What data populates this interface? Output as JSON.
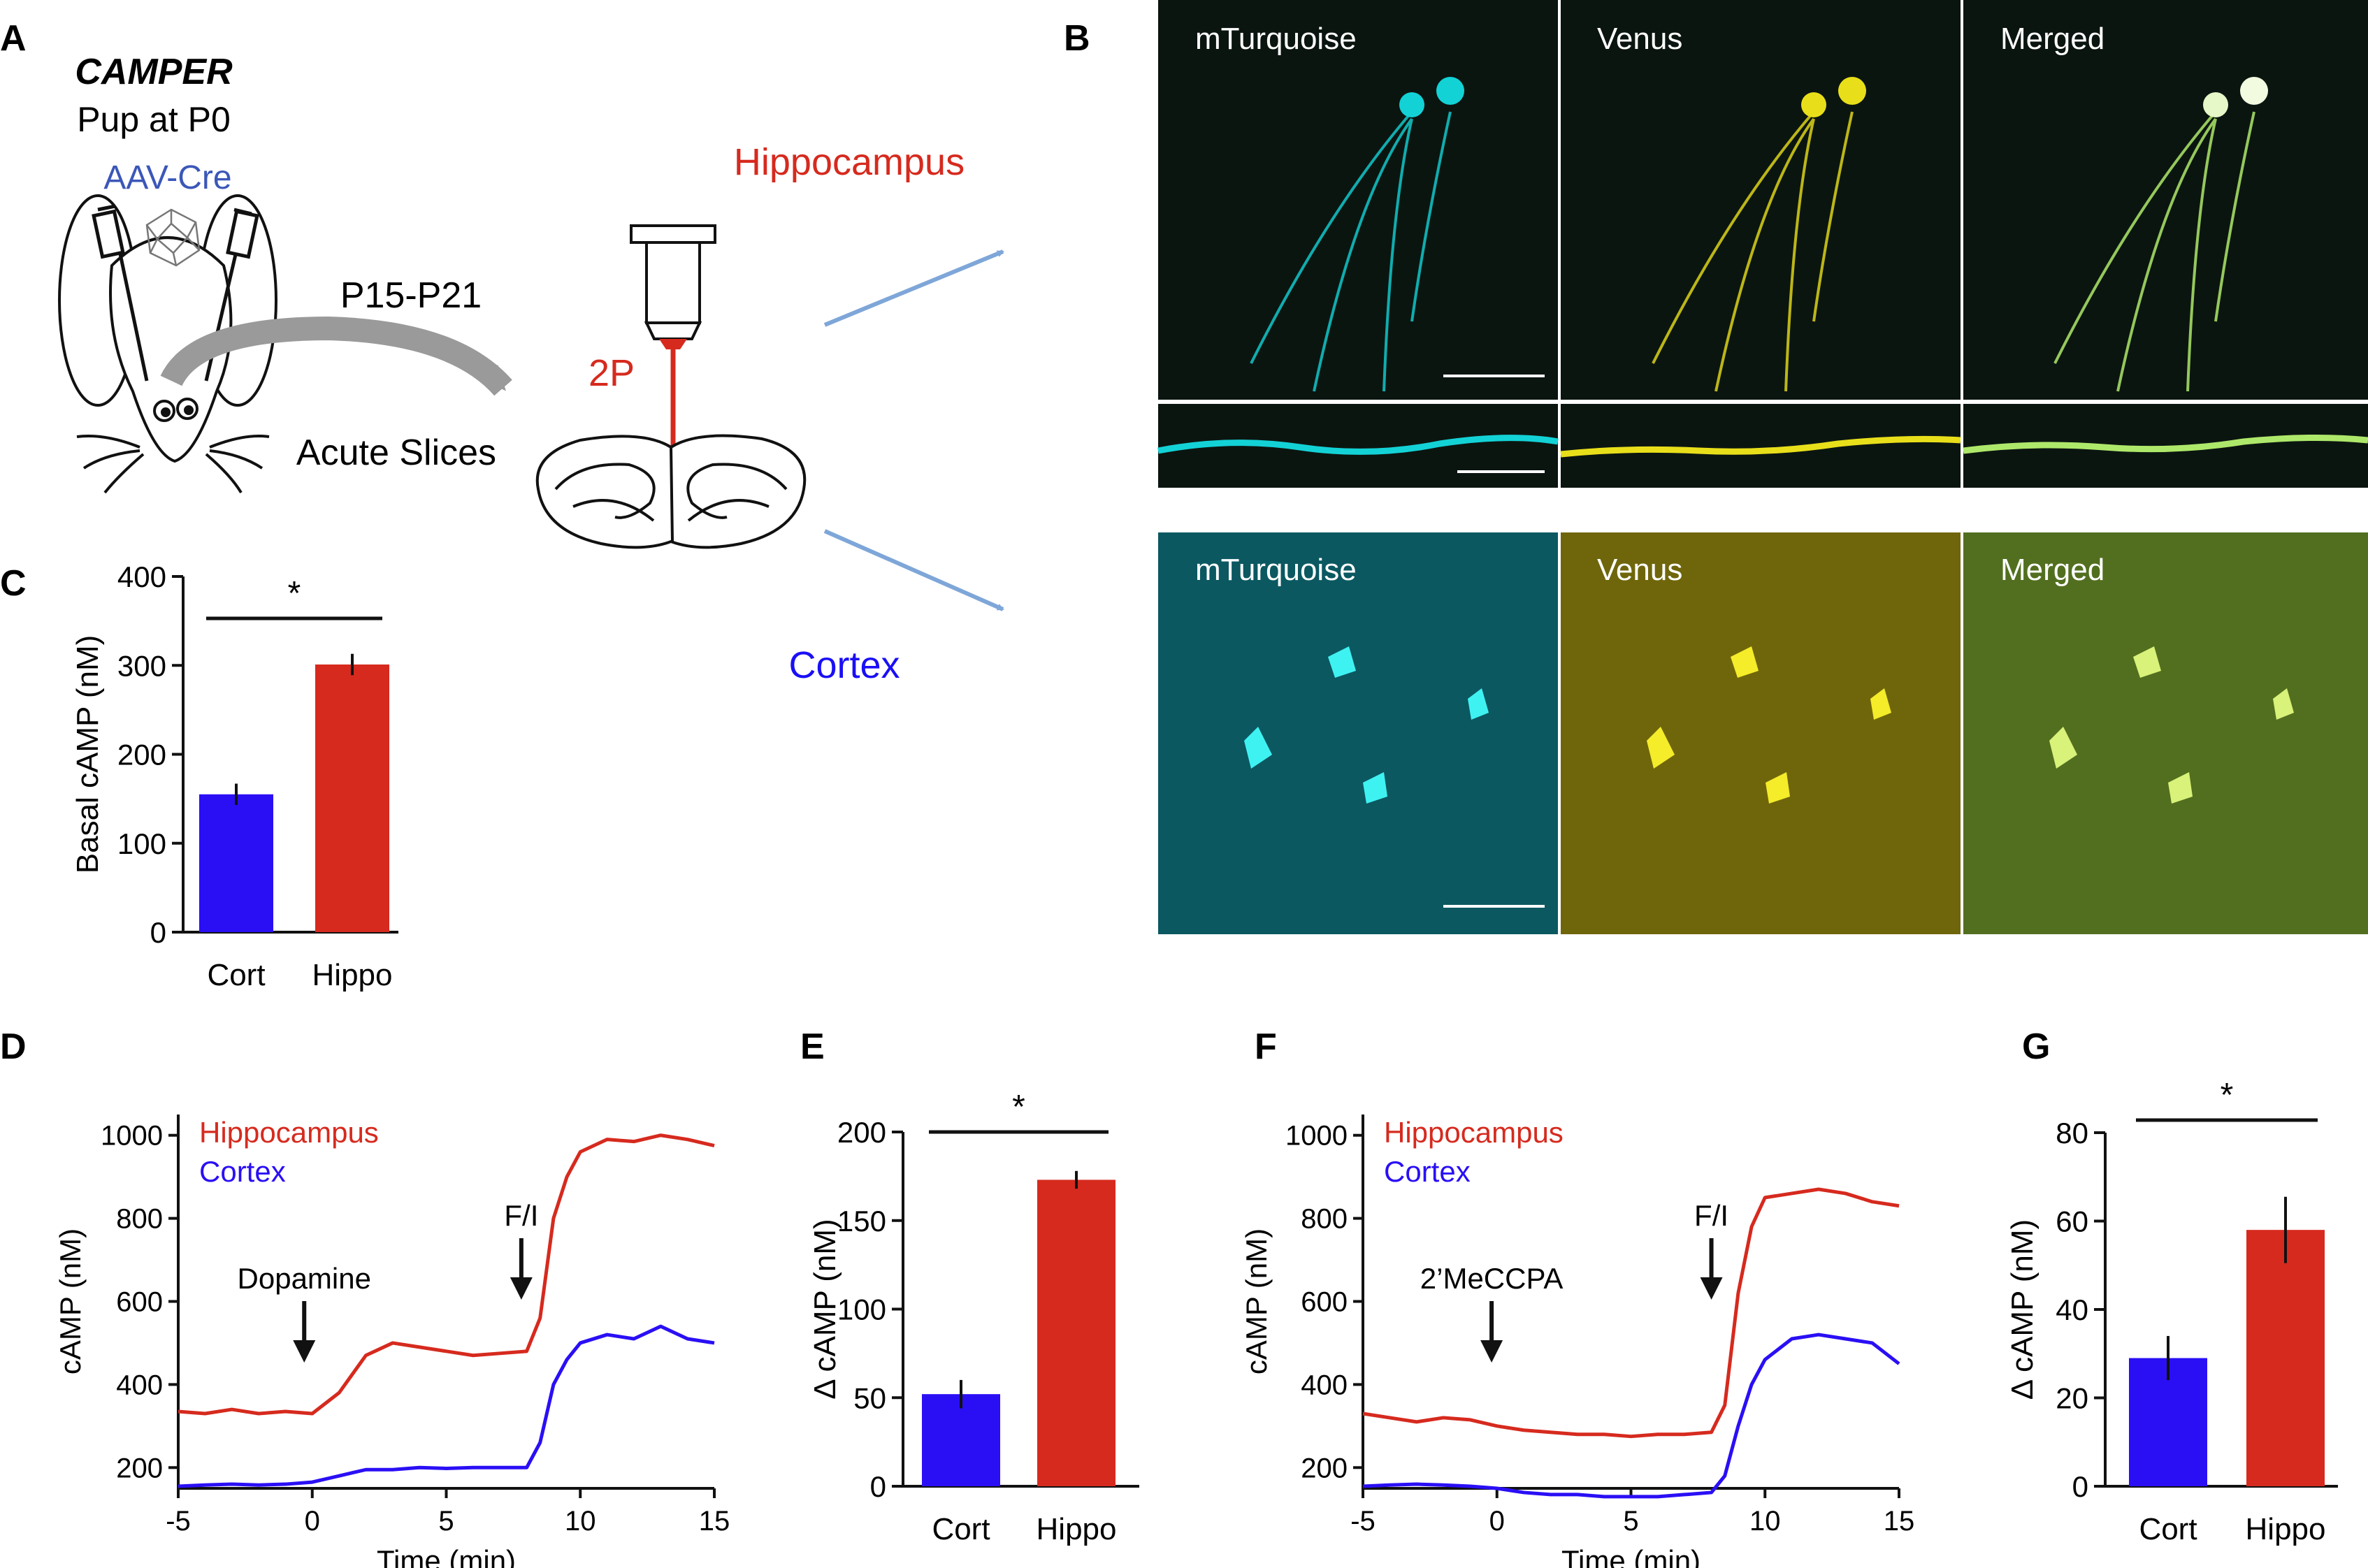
{
  "panel_letters": {
    "a": "A",
    "b": "B",
    "c": "C",
    "d": "D",
    "e": "E",
    "f": "F",
    "g": "G"
  },
  "panel_a": {
    "camper": "CAMPER",
    "pup": "Pup at P0",
    "virus": "AAV-Cre",
    "age": "P15-P21",
    "slices": "Acute Slices",
    "microscope": "2P",
    "hippocampus": "Hippocampus",
    "cortex": "Cortex"
  },
  "panel_b": {
    "channels": [
      "mTurquoise",
      "Venus",
      "Merged"
    ],
    "colors": {
      "cyan": "#13d2d6",
      "yellow": "#e8df1a",
      "green": "#aee86a",
      "bg": "#0b1510"
    }
  },
  "panel_c": {
    "chart_data": {
      "type": "bar",
      "categories": [
        "Cort",
        "Hippo"
      ],
      "values": [
        155,
        301
      ],
      "errors": [
        12,
        12
      ],
      "colors": [
        "#2a0ff5",
        "#d62a1e"
      ],
      "ylabel": "Basal cAMP (nM)",
      "ylim": [
        0,
        400
      ],
      "yticks": [
        "0",
        "100",
        "200",
        "300",
        "400"
      ],
      "significance": "*"
    }
  },
  "panel_d": {
    "chart_data": {
      "type": "line",
      "xlabel": "Time (min)",
      "ylabel": "cAMP (nM)",
      "xlim": [
        -5,
        15
      ],
      "ylim": [
        150,
        1050
      ],
      "xticks": [
        "-5",
        "0",
        "5",
        "10",
        "15"
      ],
      "yticks": [
        "200",
        "400",
        "600",
        "800",
        "1000"
      ],
      "annotations": [
        {
          "label": "Dopamine",
          "x": -0.3
        },
        {
          "label": "F/I",
          "x": 7.8
        }
      ],
      "series": [
        {
          "name": "Hippocampus",
          "color": "#d62a1e",
          "x": [
            -5,
            -4,
            -3,
            -2,
            -1,
            0,
            1,
            2,
            3,
            4,
            5,
            6,
            7,
            8,
            8.5,
            9,
            9.5,
            10,
            11,
            12,
            13,
            14,
            15
          ],
          "values": [
            335,
            330,
            340,
            330,
            335,
            330,
            380,
            470,
            500,
            490,
            480,
            470,
            475,
            480,
            560,
            800,
            900,
            960,
            990,
            985,
            1000,
            990,
            975
          ]
        },
        {
          "name": "Cortex",
          "color": "#2a0ff5",
          "x": [
            -5,
            -4,
            -3,
            -2,
            -1,
            0,
            1,
            2,
            3,
            4,
            5,
            6,
            7,
            8,
            8.5,
            9,
            9.5,
            10,
            11,
            12,
            13,
            14,
            15
          ],
          "values": [
            155,
            158,
            160,
            158,
            160,
            165,
            180,
            195,
            195,
            200,
            198,
            200,
            200,
            200,
            260,
            400,
            460,
            500,
            520,
            510,
            540,
            510,
            500
          ]
        }
      ]
    }
  },
  "panel_e": {
    "chart_data": {
      "type": "bar",
      "categories": [
        "Cort",
        "Hippo"
      ],
      "values": [
        52,
        173
      ],
      "errors": [
        8,
        5
      ],
      "colors": [
        "#2a0ff5",
        "#d62a1e"
      ],
      "ylabel": "Δ cAMP (nM)",
      "ylim": [
        0,
        200
      ],
      "yticks": [
        "0",
        "50",
        "100",
        "150",
        "200"
      ],
      "significance": "*"
    }
  },
  "panel_f": {
    "chart_data": {
      "type": "line",
      "xlabel": "Time (min)",
      "ylabel": "cAMP (nM)",
      "xlim": [
        -5,
        15
      ],
      "ylim": [
        150,
        1050
      ],
      "xticks": [
        "-5",
        "0",
        "5",
        "10",
        "15"
      ],
      "yticks": [
        "200",
        "400",
        "600",
        "800",
        "1000"
      ],
      "annotations": [
        {
          "label": "2’MeCCPA",
          "x": -0.2
        },
        {
          "label": "F/I",
          "x": 8.0
        }
      ],
      "series": [
        {
          "name": "Hippocampus",
          "color": "#d62a1e",
          "x": [
            -5,
            -4,
            -3,
            -2,
            -1,
            0,
            1,
            2,
            3,
            4,
            5,
            6,
            7,
            8,
            8.5,
            9,
            9.5,
            10,
            11,
            12,
            13,
            14,
            15
          ],
          "values": [
            330,
            320,
            310,
            320,
            315,
            300,
            290,
            285,
            280,
            280,
            275,
            280,
            280,
            285,
            350,
            620,
            780,
            850,
            860,
            870,
            860,
            840,
            830
          ]
        },
        {
          "name": "Cortex",
          "color": "#2a0ff5",
          "x": [
            -5,
            -4,
            -3,
            -2,
            -1,
            0,
            1,
            2,
            3,
            4,
            5,
            6,
            7,
            8,
            8.5,
            9,
            9.5,
            10,
            11,
            12,
            13,
            14,
            15
          ],
          "values": [
            155,
            158,
            160,
            158,
            155,
            150,
            140,
            135,
            135,
            130,
            130,
            130,
            135,
            140,
            180,
            300,
            400,
            460,
            510,
            520,
            510,
            500,
            450
          ]
        }
      ]
    }
  },
  "panel_g": {
    "chart_data": {
      "type": "bar",
      "categories": [
        "Cort",
        "Hippo"
      ],
      "values": [
        29,
        58
      ],
      "errors": [
        5,
        7.5
      ],
      "colors": [
        "#2a0ff5",
        "#d62a1e"
      ],
      "ylabel": "Δ cAMP (nM)",
      "ylim": [
        0,
        80
      ],
      "yticks": [
        "0",
        "20",
        "40",
        "60",
        "80"
      ],
      "significance": "*"
    }
  }
}
